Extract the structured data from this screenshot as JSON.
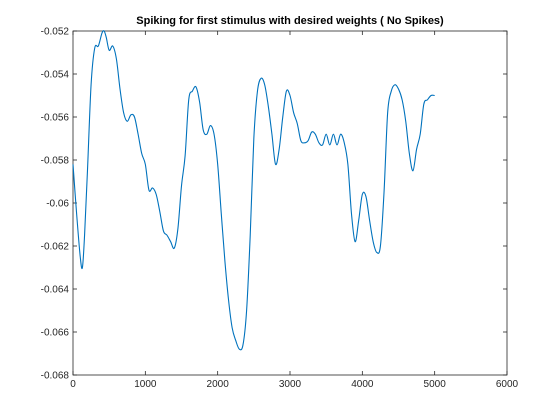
{
  "chart_data": {
    "type": "line",
    "title": "Spiking for first stimulus with desired weights ( No Spikes)",
    "xlabel": "",
    "ylabel": "",
    "xlim": [
      0,
      6000
    ],
    "ylim": [
      -0.068,
      -0.052
    ],
    "xticks": [
      0,
      1000,
      2000,
      3000,
      4000,
      5000,
      6000
    ],
    "xtick_labels": [
      "0",
      "1000",
      "2000",
      "3000",
      "4000",
      "5000",
      "6000"
    ],
    "yticks": [
      -0.068,
      -0.066,
      -0.064,
      -0.062,
      -0.06,
      -0.058,
      -0.056,
      -0.054,
      -0.052
    ],
    "ytick_labels": [
      "-0.068",
      "-0.066",
      "-0.064",
      "-0.062",
      "-0.06",
      "-0.058",
      "-0.056",
      "-0.054",
      "-0.052"
    ],
    "grid": false,
    "line_color": "#0072bd",
    "series": [
      {
        "x": [
          0,
          50,
          100,
          130,
          160,
          200,
          250,
          300,
          350,
          400,
          430,
          460,
          500,
          550,
          600,
          650,
          700,
          750,
          800,
          850,
          900,
          950,
          1000,
          1050,
          1100,
          1150,
          1200,
          1250,
          1300,
          1350,
          1400,
          1450,
          1500,
          1550,
          1600,
          1650,
          1700,
          1750,
          1800,
          1850,
          1900,
          1950,
          2000,
          2050,
          2100,
          2150,
          2200,
          2250,
          2300,
          2350,
          2400,
          2450,
          2500,
          2550,
          2600,
          2650,
          2700,
          2750,
          2800,
          2850,
          2900,
          2950,
          3000,
          3050,
          3100,
          3150,
          3200,
          3250,
          3300,
          3350,
          3400,
          3450,
          3500,
          3550,
          3600,
          3650,
          3700,
          3750,
          3800,
          3850,
          3900,
          3950,
          4000,
          4050,
          4100,
          4150,
          4200,
          4250,
          4300,
          4350,
          4400,
          4450,
          4500,
          4550,
          4600,
          4650,
          4700,
          4750,
          4800,
          4850,
          4900,
          4950,
          5000
        ],
        "y": [
          -0.0582,
          -0.0605,
          -0.0625,
          -0.063,
          -0.0615,
          -0.0585,
          -0.0545,
          -0.0528,
          -0.0527,
          -0.0521,
          -0.052,
          -0.0523,
          -0.0529,
          -0.0527,
          -0.0533,
          -0.0547,
          -0.0558,
          -0.0562,
          -0.0559,
          -0.056,
          -0.0568,
          -0.0577,
          -0.0582,
          -0.0594,
          -0.0593,
          -0.0596,
          -0.0604,
          -0.0613,
          -0.0615,
          -0.0618,
          -0.0621,
          -0.0612,
          -0.0592,
          -0.0578,
          -0.0552,
          -0.0548,
          -0.0546,
          -0.0553,
          -0.0566,
          -0.0568,
          -0.0564,
          -0.0568,
          -0.0582,
          -0.0605,
          -0.0627,
          -0.0645,
          -0.0658,
          -0.0664,
          -0.0668,
          -0.0666,
          -0.065,
          -0.0615,
          -0.057,
          -0.0548,
          -0.0542,
          -0.0545,
          -0.0555,
          -0.0568,
          -0.0582,
          -0.0575,
          -0.056,
          -0.0548,
          -0.055,
          -0.0558,
          -0.0563,
          -0.0571,
          -0.0572,
          -0.0571,
          -0.0567,
          -0.0568,
          -0.0572,
          -0.0573,
          -0.0568,
          -0.0573,
          -0.0568,
          -0.0573,
          -0.0568,
          -0.0572,
          -0.0582,
          -0.0605,
          -0.0618,
          -0.0608,
          -0.0596,
          -0.0597,
          -0.0608,
          -0.0618,
          -0.0623,
          -0.062,
          -0.0595,
          -0.0558,
          -0.0548,
          -0.0545,
          -0.0547,
          -0.0552,
          -0.0562,
          -0.0577,
          -0.0585,
          -0.0575,
          -0.0568,
          -0.0554,
          -0.0552,
          -0.055,
          -0.055
        ]
      }
    ]
  }
}
